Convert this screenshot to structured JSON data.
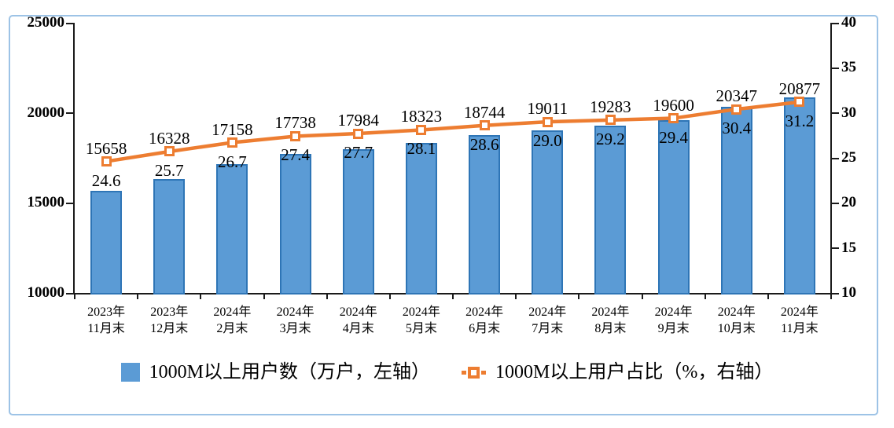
{
  "chart_data": {
    "type": "bar+line",
    "title": "",
    "categories": [
      "2023年\n11月末",
      "2023年\n12月末",
      "2024年\n2月末",
      "2024年\n3月末",
      "2024年\n4月末",
      "2024年\n5月末",
      "2024年\n6月末",
      "2024年\n7月末",
      "2024年\n8月末",
      "2024年\n9月末",
      "2024年\n10月末",
      "2024年\n11月末"
    ],
    "series": [
      {
        "name": "1000M以上用户数（万户，左轴）",
        "type": "bar",
        "axis": "left",
        "values": [
          15658,
          16328,
          17158,
          17738,
          17984,
          18323,
          18744,
          19011,
          19283,
          19600,
          20347,
          20877
        ],
        "label_decimals": 0
      },
      {
        "name": "1000M以上用户占比（%，右轴）",
        "type": "line",
        "axis": "right",
        "values": [
          24.6,
          25.7,
          26.7,
          27.4,
          27.7,
          28.1,
          28.6,
          29.0,
          29.2,
          29.4,
          30.4,
          31.2
        ],
        "label_decimals": 1
      }
    ],
    "left_axis": {
      "min": 10000,
      "max": 25000,
      "ticks": [
        10000,
        15000,
        20000,
        25000
      ]
    },
    "right_axis": {
      "min": 10,
      "max": 40,
      "ticks": [
        10,
        15,
        20,
        25,
        30,
        35,
        40
      ]
    },
    "grid": false,
    "legend_position": "bottom",
    "colors": {
      "bar_fill": "#5B9BD5",
      "bar_border": "#2E75B6",
      "line": "#ED7D31",
      "marker_fill": "#FFFFFF",
      "marker_border": "#ED7D31",
      "frame_border": "#9DC3E6",
      "axis_line": "#1a1a1a",
      "text": "#000000"
    }
  }
}
